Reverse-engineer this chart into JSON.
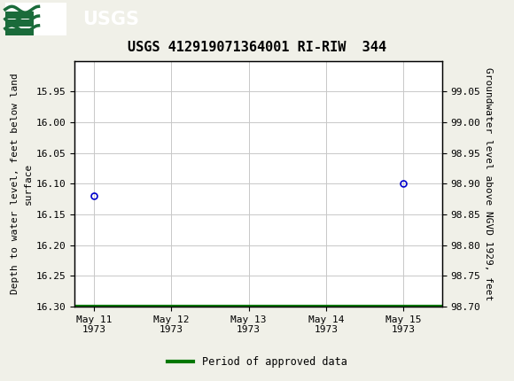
{
  "title": "USGS 412919071364001 RI-RIW  344",
  "ylabel_left": "Depth to water level, feet below land\nsurface",
  "ylabel_right": "Groundwater level above NGVD 1929, feet",
  "ylim_left": [
    16.3,
    15.9
  ],
  "ylim_right": [
    98.7,
    99.1
  ],
  "yticks_left": [
    15.95,
    16.0,
    16.05,
    16.1,
    16.15,
    16.2,
    16.25,
    16.3
  ],
  "yticks_right": [
    99.05,
    99.0,
    98.95,
    98.9,
    98.85,
    98.8,
    98.75,
    98.7
  ],
  "x_day_min": 10.75,
  "x_day_max": 15.5,
  "xtick_days": [
    11,
    12,
    13,
    14,
    15
  ],
  "data_points": [
    {
      "day": 11.0,
      "value": 16.12
    },
    {
      "day": 15.0,
      "value": 16.1
    }
  ],
  "green_line_day_start": 10.75,
  "green_line_day_end": 15.5,
  "green_line_value": 16.3,
  "point_color": "#0000cc",
  "green_color": "#007700",
  "header_bg": "#1a6b3a",
  "header_text_color": "#ffffff",
  "background_color": "#f0f0e8",
  "plot_background": "#ffffff",
  "grid_color": "#c8c8c8",
  "legend_label": "Period of approved data",
  "title_fontsize": 11,
  "axis_label_fontsize": 8,
  "tick_fontsize": 8
}
